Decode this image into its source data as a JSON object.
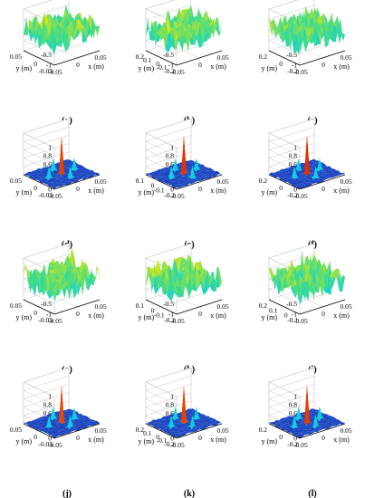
{
  "colors": {
    "low": "#1428b4",
    "mid_low": "#00c8ff",
    "mid": "#3cdc8c",
    "mid_high": "#f0e600",
    "high": "#e61e00",
    "axis": "#000000",
    "grid": "#c8c8c8"
  },
  "chart_data": [
    {
      "type": "surface",
      "label": "(a)",
      "kind": "noise",
      "zticks": [
        "1",
        "0.5",
        "0",
        "-0.5",
        "-1"
      ],
      "xticks": [
        "-0.05",
        "0",
        "0.05"
      ],
      "yticks": [
        "0.05",
        "0",
        "-0.05"
      ],
      "xlabel": "x (m)",
      "ylabel": "y (m)",
      "zlim": [
        -1,
        1
      ]
    },
    {
      "type": "surface",
      "label": "(b)",
      "kind": "noise",
      "zticks": [
        "1",
        "0.5",
        "0",
        "-0.5",
        "-1"
      ],
      "xticks": [
        "-0.05",
        "0",
        "0.05"
      ],
      "yticks": [
        "0.2",
        "0.1",
        "0",
        "-0.1",
        "-0.2"
      ],
      "xlabel": "x (m)",
      "ylabel": "y (m)",
      "zlim": [
        -1,
        1
      ]
    },
    {
      "type": "surface",
      "label": "(c)",
      "kind": "noise",
      "zticks": [
        "1",
        "0.5",
        "0",
        "-0.5",
        "-1"
      ],
      "xticks": [
        "-0.05",
        "0",
        "0.05"
      ],
      "yticks": [
        "0.2",
        "0",
        "-0.2"
      ],
      "xlabel": "x (m)",
      "ylabel": "y (m)",
      "zlim": [
        -1,
        1
      ]
    },
    {
      "type": "surface",
      "label": "(d)",
      "kind": "peak",
      "zticks": [
        "1",
        "0.8",
        "0.6",
        "0.4",
        "0.2",
        "0"
      ],
      "xticks": [
        "-0.05",
        "0",
        "0.05"
      ],
      "yticks": [
        "0.05",
        "0",
        "-0.05"
      ],
      "xlabel": "x (m)",
      "ylabel": "y (m)",
      "zlim": [
        0,
        1
      ]
    },
    {
      "type": "surface",
      "label": "(e)",
      "kind": "peak",
      "zticks": [
        "1",
        "0.8",
        "0.6",
        "0.4",
        "0.2",
        "0"
      ],
      "xticks": [
        "-0.05",
        "0",
        "0.05"
      ],
      "yticks": [
        "0.1",
        "0",
        "-0.1",
        "-0.2"
      ],
      "xlabel": "x (m)",
      "ylabel": "y (m)",
      "zlim": [
        0,
        1
      ]
    },
    {
      "type": "surface",
      "label": "(f)",
      "kind": "peak",
      "zticks": [
        "1",
        "0.8",
        "0.6",
        "0.4",
        "0.2",
        "0"
      ],
      "xticks": [
        "-0.05",
        "0",
        "0.05"
      ],
      "yticks": [
        "0.2",
        "0",
        "-0.2"
      ],
      "xlabel": "x (m)",
      "ylabel": "y (m)",
      "zlim": [
        0,
        1
      ]
    },
    {
      "type": "surface",
      "label": "(g)",
      "kind": "noise",
      "zticks": [
        "1",
        "0.5",
        "0",
        "-0.5",
        "-1"
      ],
      "xticks": [
        "-0.05",
        "0",
        "0.05"
      ],
      "yticks": [
        "0.05",
        "0",
        "-0.05"
      ],
      "xlabel": "x (m)",
      "ylabel": "y (m)",
      "zlim": [
        -1,
        1
      ]
    },
    {
      "type": "surface",
      "label": "(h)",
      "kind": "noise",
      "zticks": [
        "1",
        "0.5",
        "0",
        "-0.5",
        "-1"
      ],
      "xticks": [
        "-0.05",
        "0",
        "0.05"
      ],
      "yticks": [
        "0.1",
        "0",
        "-0.1",
        "-0.2"
      ],
      "xlabel": "x (m)",
      "ylabel": "y (m)",
      "zlim": [
        -1,
        1
      ]
    },
    {
      "type": "surface",
      "label": "(i)",
      "kind": "noise",
      "zticks": [
        "1",
        "0.5",
        "0",
        "-0.5",
        "-1"
      ],
      "xticks": [
        "-0.05",
        "0",
        "0.05"
      ],
      "yticks": [
        "0.2",
        "0.1",
        "0",
        "-0.1"
      ],
      "xlabel": "x (m)",
      "ylabel": "y (m)",
      "zlim": [
        -1,
        1
      ]
    },
    {
      "type": "surface",
      "label": "(j)",
      "kind": "peak",
      "zticks": [
        "1",
        "0.8",
        "0.6",
        "0.4",
        "0.2",
        "0"
      ],
      "xticks": [
        "-0.05",
        "0",
        "0.05"
      ],
      "yticks": [
        "0.05",
        "0",
        "-0.05"
      ],
      "xlabel": "x (m)",
      "ylabel": "y (m)",
      "zlim": [
        0,
        1
      ]
    },
    {
      "type": "surface",
      "label": "(k)",
      "kind": "peak",
      "zticks": [
        "1",
        "0.8",
        "0.6",
        "0.4",
        "0.2",
        "0"
      ],
      "xticks": [
        "-0.05",
        "0",
        "0.05"
      ],
      "yticks": [
        "0.2",
        "0.1",
        "0",
        "-0.1",
        "-0.2"
      ],
      "xlabel": "x (m)",
      "ylabel": "y (m)",
      "zlim": [
        0,
        1
      ]
    },
    {
      "type": "surface",
      "label": "(l)",
      "kind": "peak",
      "zticks": [
        "1",
        "0.8",
        "0.6",
        "0.4",
        "0.2",
        "0"
      ],
      "xticks": [
        "-0.05",
        "0",
        "0.05"
      ],
      "yticks": [
        "0.2",
        "0",
        "-0.2"
      ],
      "xlabel": "x (m)",
      "ylabel": "y (m)",
      "zlim": [
        0,
        1
      ]
    }
  ]
}
